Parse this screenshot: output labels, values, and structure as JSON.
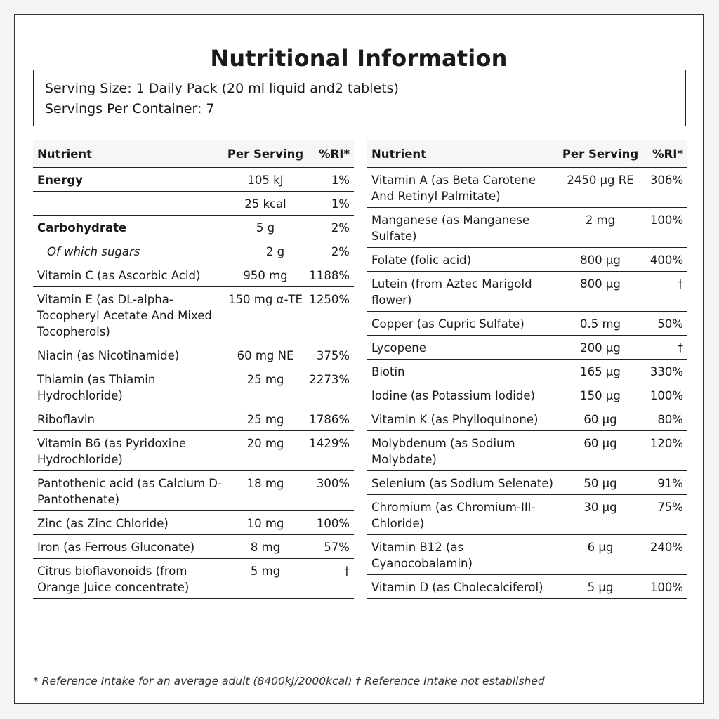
{
  "title": "Nutritional Information",
  "serving": {
    "size": "Serving Size: 1 Daily Pack (20 ml liquid and2 tablets)",
    "per_container": "Servings Per Container: 7"
  },
  "headers": {
    "nutrient": "Nutrient",
    "per_serving": "Per Serving",
    "ri": "%RI*"
  },
  "left_rows": [
    {
      "name": "Energy",
      "amount": "105 kJ",
      "ri": "1%",
      "style": "bold"
    },
    {
      "name": "",
      "amount": "25 kcal",
      "ri": "1%",
      "style": ""
    },
    {
      "name": "Carbohydrate",
      "amount": "5 g",
      "ri": "2%",
      "style": "bold"
    },
    {
      "name": "Of which sugars",
      "amount": "2 g",
      "ri": "2%",
      "style": "indent"
    },
    {
      "name": "Vitamin C (as Ascorbic Acid)",
      "amount": "950 mg",
      "ri": "1188%",
      "style": ""
    },
    {
      "name": "Vitamin E (as DL-alpha-Tocopheryl Acetate And Mixed Tocopherols)",
      "amount": "150 mg α-TE",
      "ri": "1250%",
      "style": ""
    },
    {
      "name": "Niacin (as Nicotinamide)",
      "amount": "60 mg NE",
      "ri": "375%",
      "style": ""
    },
    {
      "name": "Thiamin (as Thiamin Hydrochloride)",
      "amount": "25 mg",
      "ri": "2273%",
      "style": ""
    },
    {
      "name": "Riboflavin",
      "amount": "25 mg",
      "ri": "1786%",
      "style": ""
    },
    {
      "name": "Vitamin B6 (as Pyridoxine Hydrochloride)",
      "amount": "20 mg",
      "ri": "1429%",
      "style": ""
    },
    {
      "name": "Pantothenic acid (as Calcium D-Pantothenate)",
      "amount": "18 mg",
      "ri": "300%",
      "style": ""
    },
    {
      "name": "Zinc (as Zinc Chloride)",
      "amount": "10 mg",
      "ri": "100%",
      "style": ""
    },
    {
      "name": "Iron (as Ferrous Gluconate)",
      "amount": "8 mg",
      "ri": "57%",
      "style": ""
    },
    {
      "name": "Citrus bioflavonoids (from Orange Juice concentrate)",
      "amount": "5 mg",
      "ri": "†",
      "style": ""
    }
  ],
  "right_rows": [
    {
      "name": "Vitamin A (as Beta Carotene And Retinyl Palmitate)",
      "amount": "2450 µg RE",
      "ri": "306%",
      "style": ""
    },
    {
      "name": "Manganese (as Manganese Sulfate)",
      "amount": "2 mg",
      "ri": "100%",
      "style": ""
    },
    {
      "name": "Folate (folic acid)",
      "amount": "800 µg",
      "ri": "400%",
      "style": ""
    },
    {
      "name": "Lutein (from Aztec Marigold flower)",
      "amount": "800 µg",
      "ri": "†",
      "style": ""
    },
    {
      "name": "Copper (as Cupric Sulfate)",
      "amount": "0.5 mg",
      "ri": "50%",
      "style": ""
    },
    {
      "name": "Lycopene",
      "amount": "200 µg",
      "ri": "†",
      "style": ""
    },
    {
      "name": "Biotin",
      "amount": "165 µg",
      "ri": "330%",
      "style": ""
    },
    {
      "name": "Iodine (as Potassium Iodide)",
      "amount": "150 µg",
      "ri": "100%",
      "style": ""
    },
    {
      "name": "Vitamin K (as Phylloquinone)",
      "amount": "60 µg",
      "ri": "80%",
      "style": ""
    },
    {
      "name": "Molybdenum (as Sodium Molybdate)",
      "amount": "60 µg",
      "ri": "120%",
      "style": ""
    },
    {
      "name": "Selenium (as Sodium Selenate)",
      "amount": "50 µg",
      "ri": "91%",
      "style": ""
    },
    {
      "name": "Chromium (as Chromium-III-Chloride)",
      "amount": "30 µg",
      "ri": "75%",
      "style": ""
    },
    {
      "name": "Vitamin B12 (as Cyanocobalamin)",
      "amount": "6 µg",
      "ri": "240%",
      "style": ""
    },
    {
      "name": "Vitamin D (as Cholecalciferol)",
      "amount": "5 µg",
      "ri": "100%",
      "style": ""
    }
  ],
  "footnote": "* Reference Intake for an average adult (8400kJ/2000kcal) † Reference Intake not established"
}
